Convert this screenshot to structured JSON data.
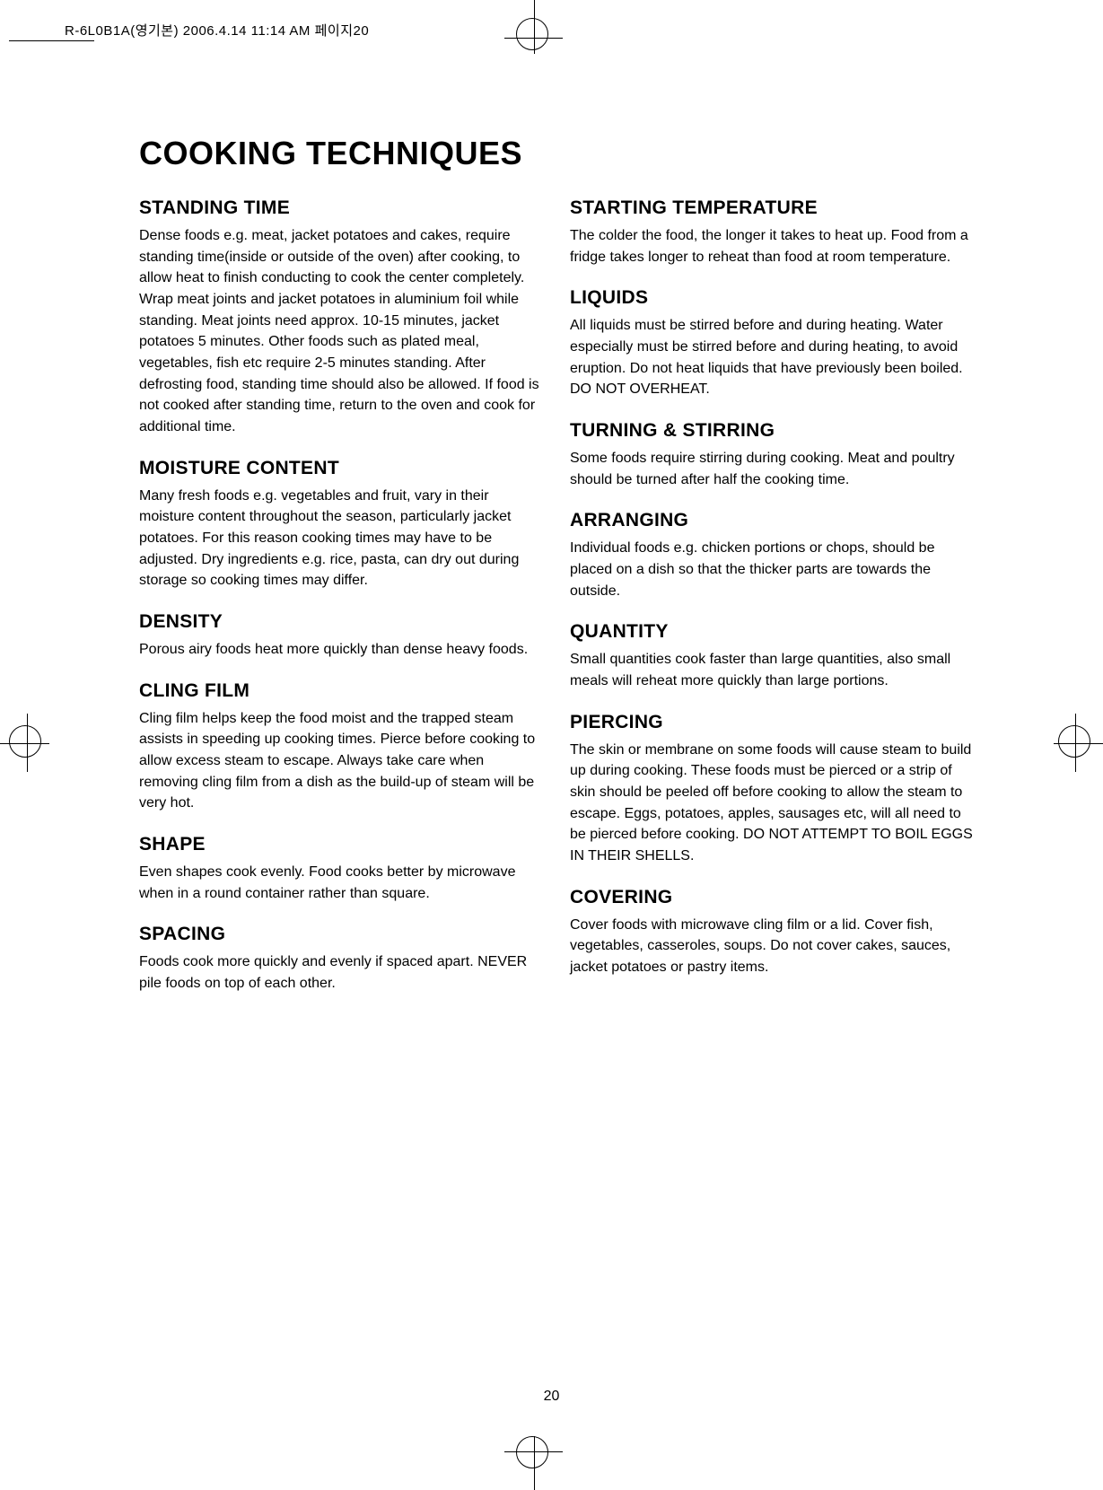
{
  "meta": {
    "header": "R-6L0B1A(영기본)  2006.4.14 11:14 AM  페이지20",
    "page_number": "20"
  },
  "title": "COOKING TECHNIQUES",
  "left": {
    "standing_time": {
      "h": "STANDING TIME",
      "p": "Dense foods e.g. meat, jacket potatoes and cakes, require standing time(inside or outside of the oven) after cooking, to allow heat to finish conducting to cook the center completely. Wrap meat joints and jacket potatoes in aluminium foil while standing. Meat joints need approx. 10-15 minutes, jacket potatoes 5 minutes. Other foods such as  plated meal, vegetables, fish etc require 2-5 minutes standing. After defrosting food, standing time should also be allowed. If food is not cooked after standing time, return to the oven and cook for additional time."
    },
    "moisture": {
      "h": "MOISTURE CONTENT",
      "p": "Many fresh foods e.g. vegetables and fruit, vary in their moisture content throughout the season, particularly jacket potatoes. For this reason cooking times may have to be adjusted. Dry ingredients e.g. rice, pasta, can dry out during storage so cooking times may differ."
    },
    "density": {
      "h": "DENSITY",
      "p": "Porous airy foods heat more quickly than dense heavy foods."
    },
    "cling_film": {
      "h": "CLING FILM",
      "p": "Cling film helps keep the food moist and the trapped steam assists in speeding up cooking times. Pierce before cooking to allow excess steam to escape. Always take care when removing cling film from a dish as the build-up of steam will be very hot."
    },
    "shape": {
      "h": "SHAPE",
      "p": "Even shapes cook evenly. Food cooks better by microwave when in a round container rather than square."
    },
    "spacing": {
      "h": "SPACING",
      "p": "Foods cook more quickly and evenly if spaced apart. NEVER pile foods on top of each other."
    }
  },
  "right": {
    "starting_temp": {
      "h": "STARTING TEMPERATURE",
      "p": "The colder the food, the longer it takes to heat up. Food from a fridge takes longer to reheat than food at room temperature."
    },
    "liquids": {
      "h": "LIQUIDS",
      "p": "All liquids must be stirred before and during heating. Water especially must be stirred before and during heating, to avoid eruption. Do not heat liquids that have previously been boiled. DO NOT OVERHEAT."
    },
    "turning": {
      "h": "TURNING & STIRRING",
      "p": "Some foods require stirring during cooking. Meat and poultry should be turned after half the cooking time."
    },
    "arranging": {
      "h": "ARRANGING",
      "p": "Individual foods e.g. chicken portions or chops, should be placed on a dish so that the thicker parts are towards the outside."
    },
    "quantity": {
      "h": "QUANTITY",
      "p": "Small quantities cook faster than large quantities, also small meals will reheat more quickly than large portions."
    },
    "piercing": {
      "h": "PIERCING",
      "p": "The skin or membrane on some foods will cause steam to build up during cooking. These foods must be pierced or a strip of skin should be peeled off before cooking to allow the steam to escape. Eggs, potatoes, apples, sausages etc, will all need to be pierced before cooking. DO NOT ATTEMPT TO BOIL EGGS IN THEIR SHELLS."
    },
    "covering": {
      "h": "COVERING",
      "p": "Cover foods with microwave cling film or a lid. Cover fish, vegetables, casseroles, soups. Do not cover cakes, sauces, jacket potatoes or pastry items."
    }
  }
}
